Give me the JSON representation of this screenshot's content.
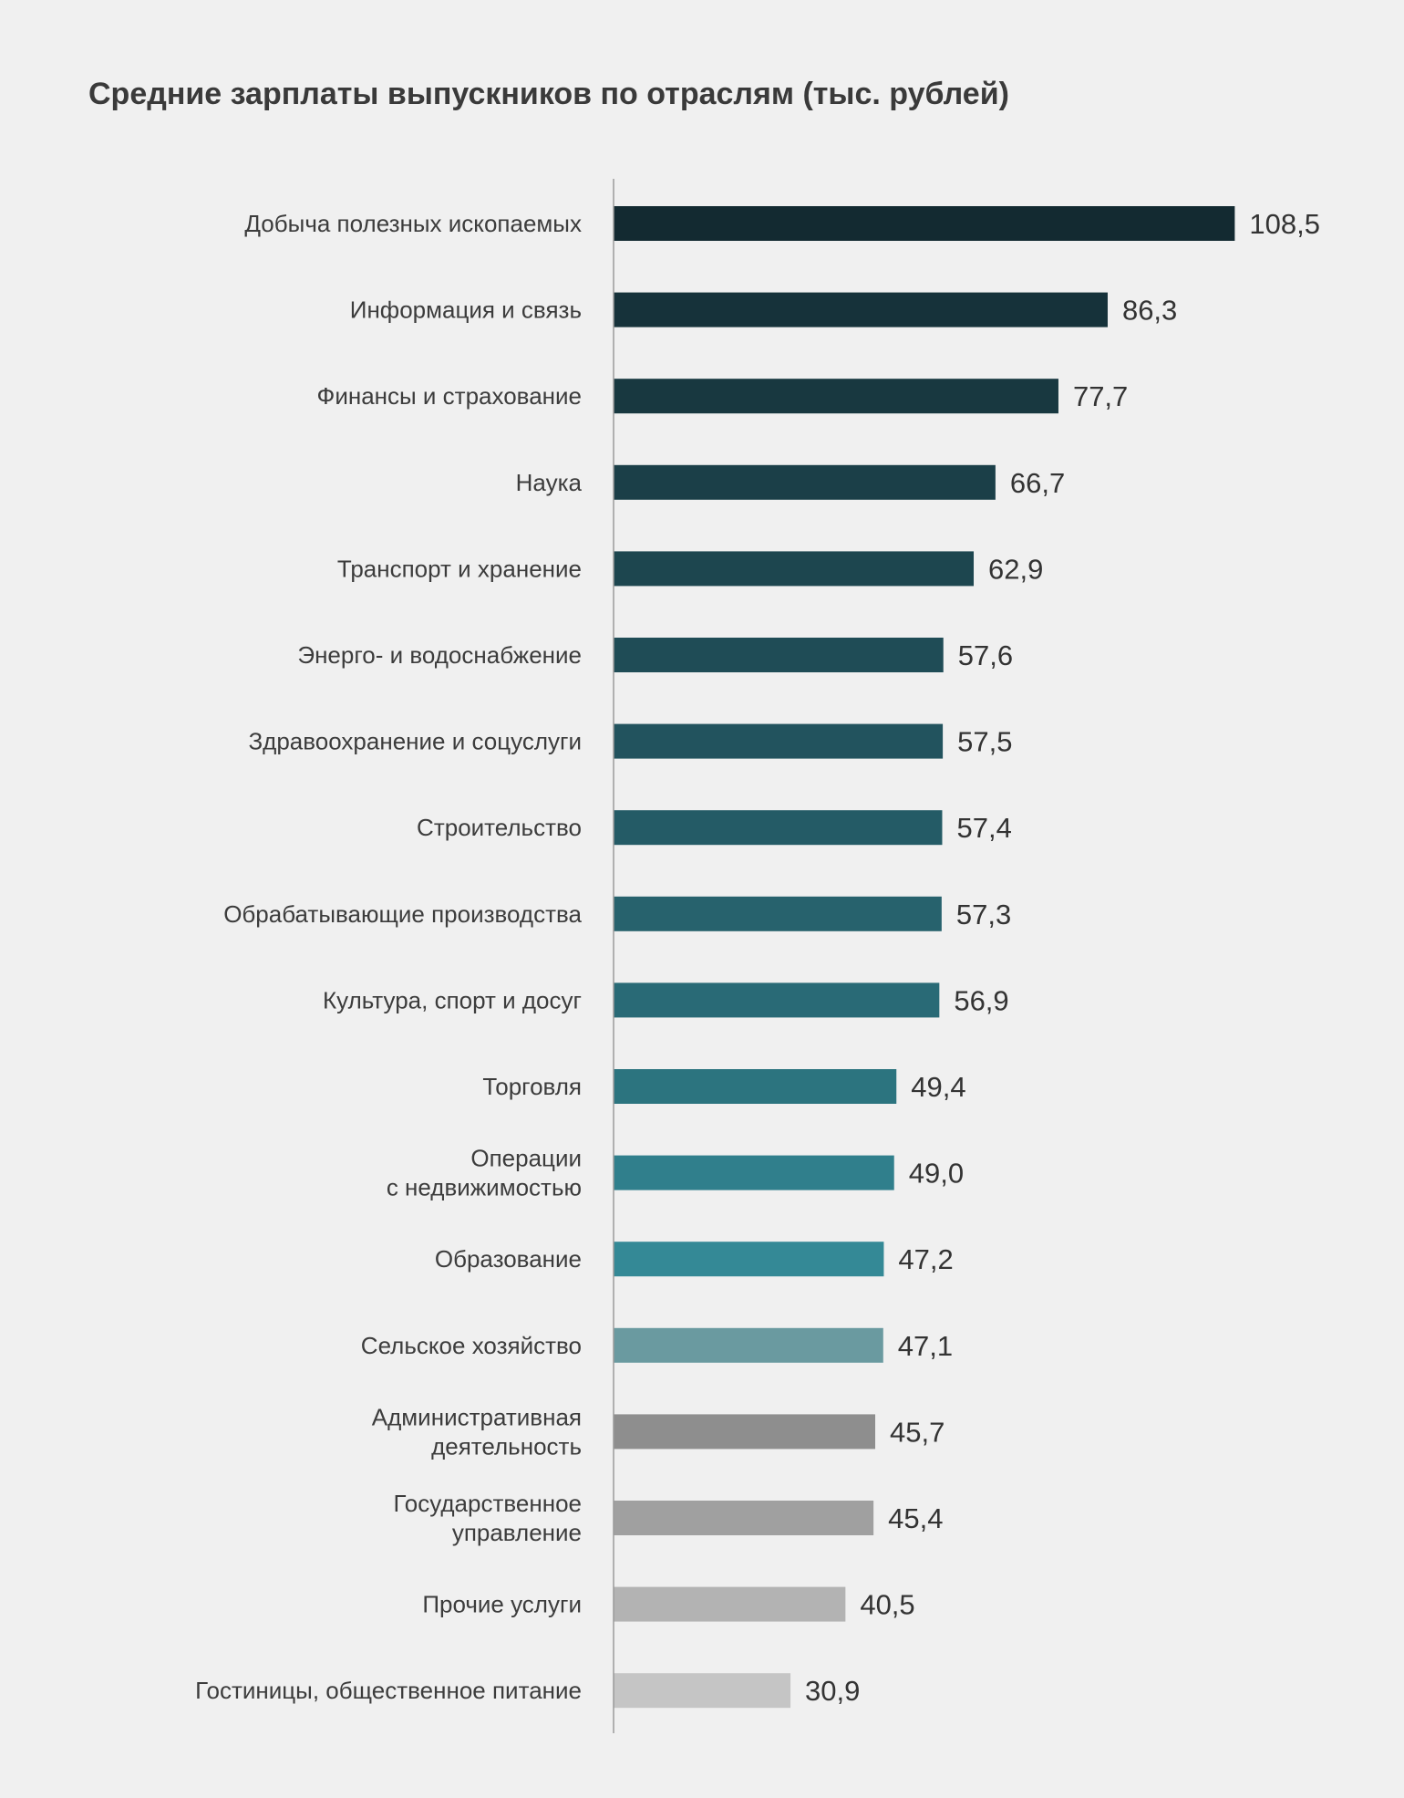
{
  "chart_data": {
    "type": "bar",
    "orientation": "horizontal",
    "title": "Средние зарплаты выпускников по отраслям (тыс. рублей)",
    "xlabel": "",
    "ylabel": "",
    "grid": false,
    "categories": [
      [
        "Добыча полезных ископаемых"
      ],
      [
        "Информация и связь"
      ],
      [
        "Финансы и страхование"
      ],
      [
        "Наука"
      ],
      [
        "Транспорт и хранение"
      ],
      [
        "Энерго- и водоснабжение"
      ],
      [
        "Здравоохранение и соцуслуги"
      ],
      [
        "Строительство"
      ],
      [
        "Обрабатывающие производства"
      ],
      [
        "Культура, спорт и досуг"
      ],
      [
        "Торговля"
      ],
      [
        "Операции",
        "с недвижимостью"
      ],
      [
        "Образование"
      ],
      [
        "Сельское хозяйство"
      ],
      [
        "Административная",
        "деятельность"
      ],
      [
        "Государственное",
        "управление"
      ],
      [
        "Прочие услуги"
      ],
      [
        "Гостиницы, общественное питание"
      ]
    ],
    "values": [
      108.5,
      86.3,
      77.7,
      66.7,
      62.9,
      57.6,
      57.5,
      57.4,
      57.3,
      56.9,
      49.4,
      49.0,
      47.2,
      47.1,
      45.7,
      45.4,
      40.5,
      30.9
    ],
    "value_labels": [
      "108,5",
      "86,3",
      "77,7",
      "66,7",
      "62,9",
      "57,6",
      "57,5",
      "57,4",
      "57,3",
      "56,9",
      "49,4",
      "49,0",
      "47,2",
      "47,1",
      "45,7",
      "45,4",
      "40,5",
      "30,9"
    ],
    "colors": [
      "#132a31",
      "#16323a",
      "#183840",
      "#1b3f48",
      "#1d464f",
      "#1f4c56",
      "#22535e",
      "#245b66",
      "#27626d",
      "#296a76",
      "#2c747f",
      "#307f8c",
      "#348996",
      "#6a9aa0",
      "#8e8e8e",
      "#a0a0a0",
      "#b3b3b3",
      "#c5c5c5"
    ],
    "axis_line_color": "#9a9a9a"
  }
}
